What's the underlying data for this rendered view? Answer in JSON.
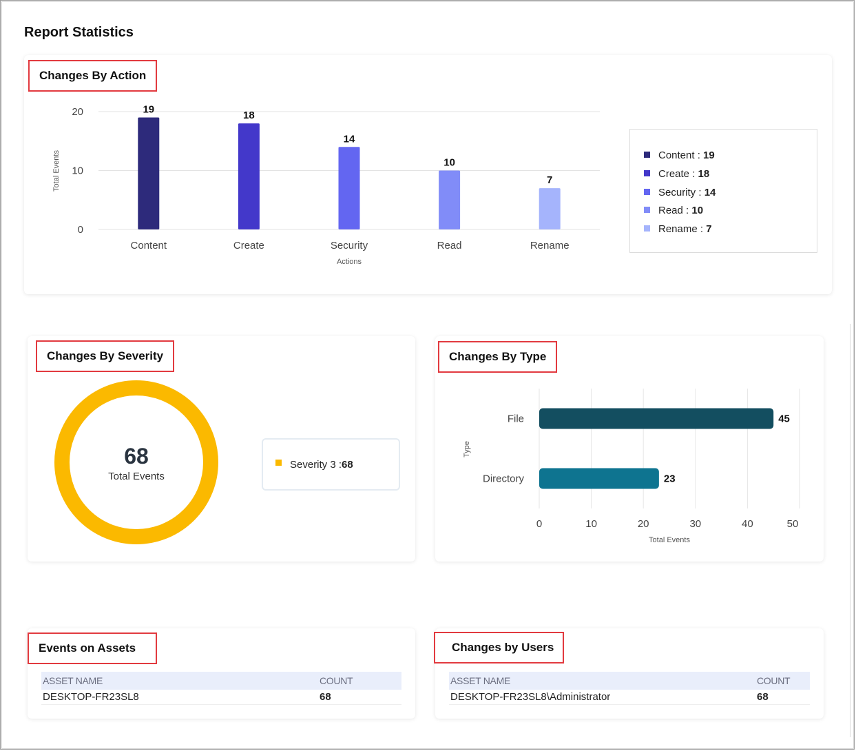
{
  "page": {
    "title": "Report Statistics"
  },
  "changes_by_action": {
    "title": "Changes By Action",
    "legend": [
      {
        "label": "Content :",
        "value": "19",
        "color": "#2d2a7b"
      },
      {
        "label": "Create :",
        "value": "18",
        "color": "#4338ca"
      },
      {
        "label": "Security :",
        "value": "14",
        "color": "#6366f1"
      },
      {
        "label": "Read :",
        "value": "10",
        "color": "#818cf8"
      },
      {
        "label": "Rename :",
        "value": "7",
        "color": "#a5b4fc"
      }
    ],
    "chart_data": {
      "type": "bar",
      "categories": [
        "Content",
        "Create",
        "Security",
        "Read",
        "Rename"
      ],
      "values": [
        19,
        18,
        14,
        10,
        7
      ],
      "colors": [
        "#2d2a7b",
        "#4338ca",
        "#6366f1",
        "#818cf8",
        "#a5b4fc"
      ],
      "xlabel": "Actions",
      "ylabel": "Total Events",
      "ylim": [
        0,
        20
      ],
      "yticks": [
        0,
        10,
        20
      ],
      "grid": true,
      "legend": "right"
    }
  },
  "changes_by_severity": {
    "title": "Changes By Severity",
    "total_value": "68",
    "total_label": "Total Events",
    "legend": [
      {
        "label": "Severity 3 :",
        "value": "68",
        "color": "#fbb900"
      }
    ],
    "chart_data": {
      "type": "pie",
      "categories": [
        "Severity 3"
      ],
      "values": [
        68
      ],
      "colors": [
        "#fbb900"
      ],
      "legend": "right"
    }
  },
  "changes_by_type": {
    "title": "Changes By Type",
    "chart_data": {
      "type": "bar",
      "orientation": "horizontal",
      "categories": [
        "File",
        "Directory"
      ],
      "values": [
        45,
        23
      ],
      "colors": [
        "#134e60",
        "#0e7490"
      ],
      "xlabel": "Total Events",
      "ylabel": "Type",
      "xlim": [
        0,
        50
      ],
      "xticks": [
        0,
        10,
        20,
        30,
        40,
        50
      ],
      "grid": true
    }
  },
  "events_on_assets": {
    "title": "Events on Assets",
    "columns": [
      "ASSET NAME",
      "COUNT"
    ],
    "rows": [
      {
        "name": "DESKTOP-FR23SL8",
        "count": "68"
      }
    ]
  },
  "changes_by_users": {
    "title": "Changes by Users",
    "columns": [
      "ASSET NAME",
      "COUNT"
    ],
    "rows": [
      {
        "name": "DESKTOP-FR23SL8\\Administrator",
        "count": "68"
      }
    ]
  }
}
